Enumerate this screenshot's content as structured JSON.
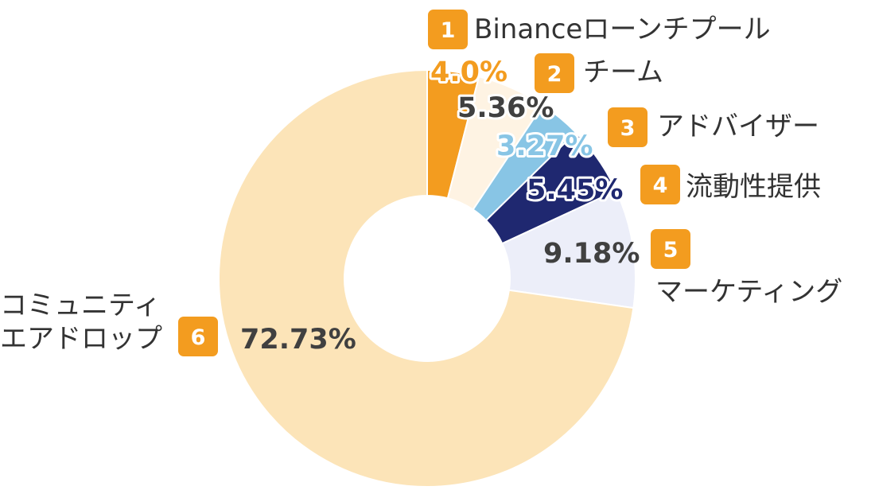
{
  "chart_data": {
    "type": "pie",
    "donut": true,
    "start_angle_deg": 0,
    "direction": "clockwise",
    "slices": [
      {
        "number": "1",
        "label": [
          "Binanceローンチプール"
        ],
        "value": 4.0,
        "pct_label": "4.0%",
        "color": "#F39C1F",
        "text_color": "#F39C1F",
        "outline": "#ffffff"
      },
      {
        "number": "2",
        "label": [
          "チーム"
        ],
        "value": 5.36,
        "pct_label": "5.36%",
        "color": "#FEF3E3",
        "text_color": "#404040",
        "outline": "#ffffff"
      },
      {
        "number": "3",
        "label": [
          "アドバイザー"
        ],
        "value": 3.27,
        "pct_label": "3.27%",
        "color": "#88C5E5",
        "text_color": "#88C5E5",
        "outline": "#ffffff"
      },
      {
        "number": "4",
        "label": [
          "流動性提供"
        ],
        "value": 5.45,
        "pct_label": "5.45%",
        "color": "#1F2870",
        "text_color": "#1F2870",
        "outline": "#ffffff"
      },
      {
        "number": "5",
        "label": [
          "マーケティング"
        ],
        "value": 9.18,
        "pct_label": "9.18%",
        "color": "#ECEEF9",
        "text_color": "#404040",
        "outline": "none"
      },
      {
        "number": "6",
        "label": [
          "コミュニティ",
          "エアドロップ"
        ],
        "value": 72.73,
        "pct_label": "72.73%",
        "color": "#FCE4B8",
        "text_color": "#404040",
        "outline": "none"
      }
    ],
    "badge_color": "#F39C1F"
  }
}
